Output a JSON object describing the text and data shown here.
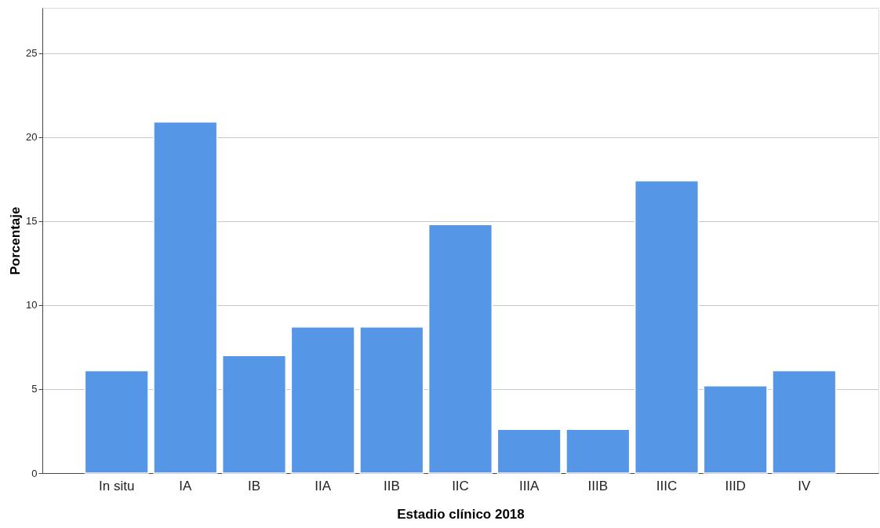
{
  "chart_data": {
    "type": "bar",
    "xlabel": "Estadio clínico 2018",
    "ylabel": "Porcentaje",
    "categories": [
      "In situ",
      "IA",
      "IB",
      "IIA",
      "IIB",
      "IIC",
      "IIIA",
      "IIIB",
      "IIIC",
      "IIID",
      "IV"
    ],
    "values": [
      6.1,
      20.9,
      7.0,
      8.7,
      8.7,
      14.8,
      2.6,
      2.6,
      17.4,
      5.2,
      6.1
    ],
    "color": "#5596e6",
    "ylim": [
      0,
      27.7
    ],
    "yticks": [
      0,
      5,
      10,
      15,
      20,
      25
    ],
    "grid": "y"
  }
}
